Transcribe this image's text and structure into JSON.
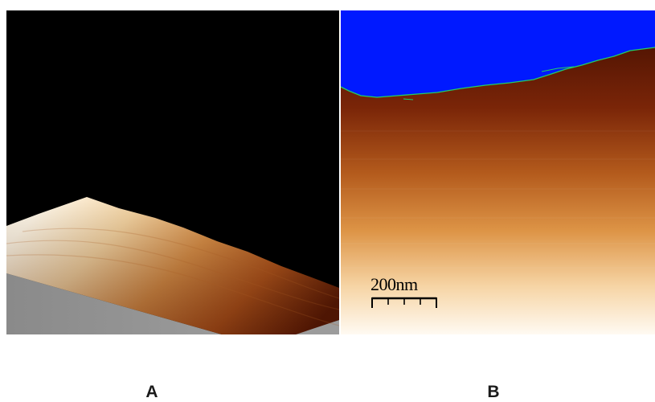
{
  "panels": [
    {
      "id": "A",
      "label": "A",
      "view": "3d-surface-rendering"
    },
    {
      "id": "B",
      "label": "B",
      "view": "2d-height-map"
    }
  ],
  "scale_bar": {
    "text": "200nm"
  },
  "colors": {
    "background": "#ffffff",
    "panel_a_background": "#000000",
    "panel_b_void": "#0019ff",
    "edge_contour": "#22cc66",
    "height_low": "#5a1500",
    "height_mid": "#c46a1e",
    "height_high": "#fff7ee",
    "substrate_gray": "#8c8c8c"
  }
}
